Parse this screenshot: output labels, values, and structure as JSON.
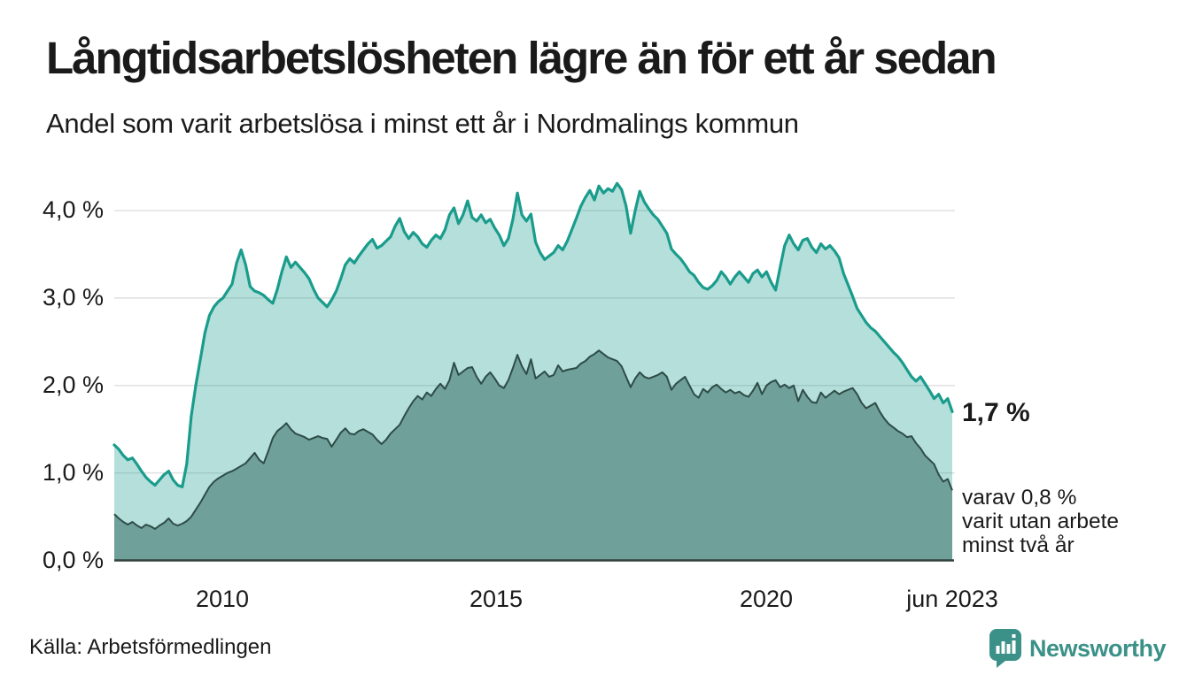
{
  "header": {
    "title": "Långtidsarbetslösheten lägre än för ett år sedan",
    "subtitle": "Andel som varit arbetslösa i minst ett år i Nordmalings kommun"
  },
  "chart_data": {
    "type": "area",
    "title": "Långtidsarbetslösheten lägre än för ett år sedan",
    "subtitle": "Andel som varit arbetslösa i minst ett år i Nordmalings kommun",
    "unit": "%",
    "frequency": "monthly",
    "x_start": "2008-01",
    "x_end": "2023-06",
    "x_tick_labels": [
      "2010",
      "2015",
      "2020",
      "jun 2023"
    ],
    "y_tick_labels": [
      "4,0 %",
      "3,0 %",
      "2,0 %",
      "1,0 %",
      "0,0 %"
    ],
    "y_ticks": [
      4.0,
      3.0,
      2.0,
      1.0,
      0.0
    ],
    "ylim": [
      0,
      4.45
    ],
    "grid": true,
    "legend_position": "none",
    "series": [
      {
        "name": "Arbetslösa minst ett år",
        "color": "#1A9C8C",
        "fill": "rgba(26,156,140,0.32)",
        "end_label": "1,7 %",
        "values": [
          1.32,
          1.27,
          1.2,
          1.15,
          1.17,
          1.1,
          1.02,
          0.95,
          0.9,
          0.86,
          0.92,
          0.98,
          1.02,
          0.92,
          0.86,
          0.84,
          1.1,
          1.65,
          2.0,
          2.3,
          2.6,
          2.8,
          2.9,
          2.96,
          3.0,
          3.08,
          3.16,
          3.4,
          3.55,
          3.38,
          3.13,
          3.08,
          3.06,
          3.03,
          2.98,
          2.94,
          3.1,
          3.3,
          3.47,
          3.35,
          3.41,
          3.35,
          3.29,
          3.22,
          3.1,
          3.0,
          2.95,
          2.9,
          2.98,
          3.08,
          3.22,
          3.38,
          3.45,
          3.4,
          3.48,
          3.55,
          3.62,
          3.67,
          3.57,
          3.6,
          3.65,
          3.7,
          3.82,
          3.91,
          3.76,
          3.68,
          3.75,
          3.7,
          3.62,
          3.58,
          3.66,
          3.72,
          3.68,
          3.78,
          3.95,
          4.03,
          3.85,
          3.95,
          4.11,
          3.92,
          3.88,
          3.95,
          3.86,
          3.9,
          3.8,
          3.72,
          3.6,
          3.68,
          3.9,
          4.2,
          3.95,
          3.88,
          3.96,
          3.64,
          3.52,
          3.44,
          3.48,
          3.52,
          3.6,
          3.55,
          3.65,
          3.78,
          3.91,
          4.05,
          4.15,
          4.23,
          4.12,
          4.28,
          4.2,
          4.25,
          4.22,
          4.31,
          4.24,
          4.05,
          3.74,
          4.0,
          4.22,
          4.1,
          4.02,
          3.95,
          3.9,
          3.82,
          3.74,
          3.56,
          3.5,
          3.45,
          3.38,
          3.3,
          3.26,
          3.18,
          3.12,
          3.1,
          3.14,
          3.2,
          3.3,
          3.24,
          3.16,
          3.24,
          3.3,
          3.24,
          3.18,
          3.28,
          3.32,
          3.24,
          3.3,
          3.18,
          3.09,
          3.35,
          3.6,
          3.72,
          3.62,
          3.55,
          3.66,
          3.68,
          3.58,
          3.52,
          3.62,
          3.56,
          3.6,
          3.54,
          3.46,
          3.28,
          3.15,
          3.02,
          2.88,
          2.8,
          2.72,
          2.66,
          2.62,
          2.56,
          2.5,
          2.44,
          2.38,
          2.33,
          2.26,
          2.18,
          2.1,
          2.05,
          2.1,
          2.02,
          1.94,
          1.85,
          1.9,
          1.8,
          1.85,
          1.7
        ]
      },
      {
        "name": "Varav arbetslösa minst två år",
        "color": "#2E4C47",
        "fill": "#6FA09A",
        "end_label": "varav 0,8 %",
        "values": [
          0.53,
          0.48,
          0.44,
          0.41,
          0.44,
          0.4,
          0.37,
          0.41,
          0.39,
          0.36,
          0.4,
          0.43,
          0.48,
          0.42,
          0.4,
          0.42,
          0.45,
          0.5,
          0.58,
          0.66,
          0.75,
          0.84,
          0.9,
          0.94,
          0.97,
          1.0,
          1.02,
          1.05,
          1.08,
          1.11,
          1.17,
          1.23,
          1.15,
          1.11,
          1.25,
          1.4,
          1.48,
          1.52,
          1.57,
          1.5,
          1.45,
          1.43,
          1.41,
          1.38,
          1.4,
          1.42,
          1.4,
          1.39,
          1.3,
          1.38,
          1.46,
          1.51,
          1.45,
          1.44,
          1.48,
          1.5,
          1.47,
          1.44,
          1.38,
          1.33,
          1.38,
          1.45,
          1.5,
          1.55,
          1.65,
          1.74,
          1.82,
          1.88,
          1.84,
          1.92,
          1.88,
          1.96,
          2.02,
          1.96,
          2.06,
          2.26,
          2.12,
          2.16,
          2.2,
          2.21,
          2.1,
          2.02,
          2.1,
          2.15,
          2.08,
          2.0,
          1.97,
          2.06,
          2.2,
          2.35,
          2.22,
          2.13,
          2.3,
          2.08,
          2.12,
          2.16,
          2.1,
          2.12,
          2.23,
          2.16,
          2.18,
          2.19,
          2.2,
          2.25,
          2.28,
          2.33,
          2.36,
          2.4,
          2.36,
          2.32,
          2.3,
          2.28,
          2.22,
          2.1,
          1.98,
          2.08,
          2.15,
          2.1,
          2.08,
          2.1,
          2.12,
          2.15,
          2.1,
          1.95,
          2.02,
          2.06,
          2.1,
          2.0,
          1.9,
          1.86,
          1.96,
          1.92,
          1.98,
          2.01,
          1.96,
          1.92,
          1.95,
          1.91,
          1.93,
          1.89,
          1.87,
          1.94,
          2.03,
          1.9,
          2.0,
          2.04,
          2.06,
          1.98,
          2.01,
          1.97,
          2.0,
          1.82,
          1.95,
          1.87,
          1.81,
          1.8,
          1.92,
          1.86,
          1.9,
          1.94,
          1.9,
          1.93,
          1.95,
          1.97,
          1.9,
          1.8,
          1.74,
          1.77,
          1.8,
          1.7,
          1.62,
          1.56,
          1.52,
          1.48,
          1.45,
          1.41,
          1.42,
          1.34,
          1.28,
          1.2,
          1.15,
          1.1,
          0.98,
          0.9,
          0.93,
          0.8
        ]
      }
    ]
  },
  "annotations": {
    "end_value_label": "1,7 %",
    "sub_label": "varav 0,8 %\nvarit utan arbete\nminst två år"
  },
  "source": "Källa: Arbetsförmedlingen",
  "logo": {
    "text": "Newsworthy",
    "icon": "newsworthy-pin-barchart-icon"
  },
  "colors": {
    "accent_teal": "#1A9C8C",
    "light_area": "rgba(26,156,140,0.32)",
    "dark_area": "#6FA09A",
    "dark_line": "#2E4C47",
    "grid": "#E0E0E0",
    "axis": "#30403D",
    "text": "#1A1A1A",
    "brand": "#3B9188"
  }
}
